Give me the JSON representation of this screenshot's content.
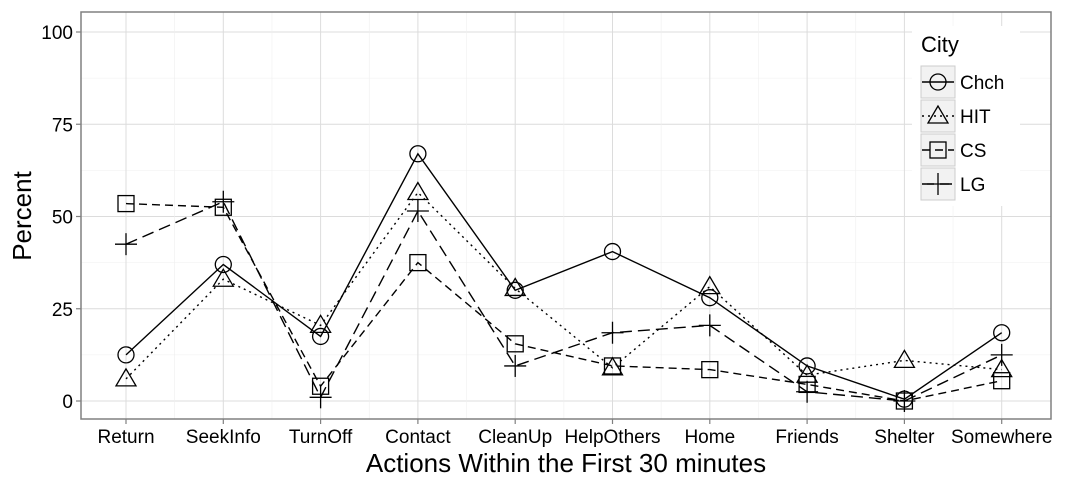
{
  "chart_data": {
    "type": "line",
    "xlabel": "Actions Within the First 30 minutes",
    "ylabel": "Percent",
    "ylim": [
      0,
      100
    ],
    "yticks": [
      0,
      25,
      50,
      75,
      100
    ],
    "grid": true,
    "legend_position": "top-right",
    "legend_title": "City",
    "categories": [
      "Return",
      "SeekInfo",
      "TurnOff",
      "Contact",
      "CleanUp",
      "HelpOthers",
      "Home",
      "Friends",
      "Shelter",
      "Somewhere"
    ],
    "series": [
      {
        "name": "Chch",
        "marker": "circle",
        "dash": "solid",
        "values": [
          12.5,
          37,
          17.5,
          67,
          30,
          40.5,
          28,
          9.5,
          0.5,
          18.5
        ]
      },
      {
        "name": "HIT",
        "marker": "triangle",
        "dash": "dotted",
        "values": [
          6,
          33,
          20.5,
          56.5,
          30.5,
          9,
          31,
          7,
          11,
          8.5
        ]
      },
      {
        "name": "CS",
        "marker": "square",
        "dash": "dashed",
        "values": [
          53.5,
          52.5,
          4,
          37.5,
          15.5,
          9.5,
          8.5,
          4.5,
          0,
          5.5
        ]
      },
      {
        "name": "LG",
        "marker": "plus",
        "dash": "longdash",
        "values": [
          42.5,
          54,
          1,
          51.5,
          9.5,
          18.5,
          20.5,
          2.5,
          0,
          12.5
        ]
      }
    ]
  }
}
